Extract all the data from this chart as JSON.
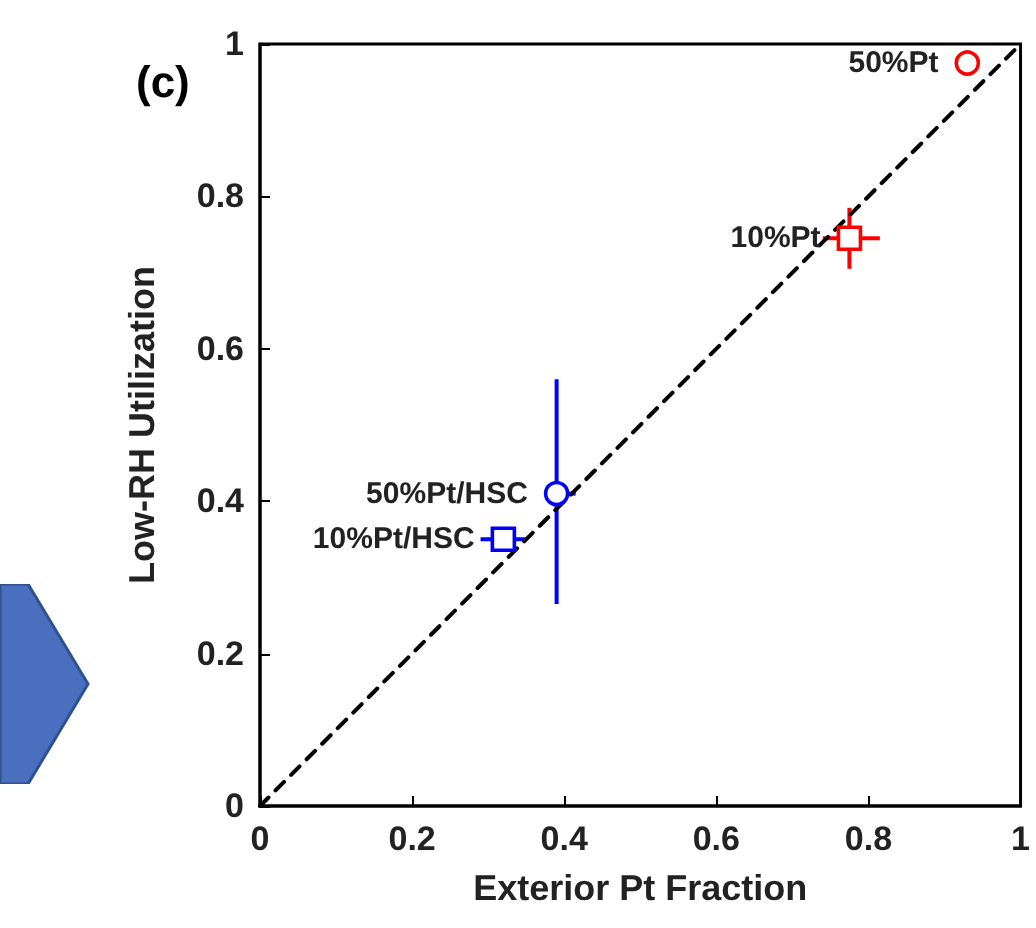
{
  "chart_data": {
    "type": "scatter",
    "xlabel": "Exterior Pt Fraction",
    "ylabel": "Low-RH Utilization",
    "annotations": [
      "(c)"
    ],
    "xlim": [
      0,
      1
    ],
    "ylim": [
      0,
      1
    ],
    "xticks": [
      0,
      0.2,
      0.4,
      0.6,
      0.8,
      1
    ],
    "yticks": [
      0,
      0.2,
      0.4,
      0.6,
      0.8,
      1
    ],
    "grid": false,
    "legend": false,
    "series": [
      {
        "type": "line",
        "color": "#000000",
        "x": [
          0,
          1
        ],
        "values": [
          0,
          1
        ],
        "line_style": "dashed",
        "marker": "none"
      },
      {
        "name": "50%Pt",
        "color": "#ff0000",
        "x": [
          0.93
        ],
        "values": [
          0.975
        ],
        "marker": "circle"
      },
      {
        "name": "10%Pt",
        "color": "#ff0000",
        "x": [
          0.775
        ],
        "values": [
          0.745
        ],
        "marker": "square",
        "errors": [
          [
            0.705,
            0.785
          ]
        ],
        "xerrors": [
          [
            0.74,
            0.815
          ]
        ]
      },
      {
        "name": "50%Pt/HSC",
        "color": "#0000ff",
        "x": [
          0.39
        ],
        "values": [
          0.41
        ],
        "marker": "circle",
        "errors": [
          [
            0.265,
            0.56
          ]
        ],
        "xerrors": [
          [
            0.375,
            0.415
          ]
        ]
      },
      {
        "name": "10%Pt/HSC",
        "color": "#0000ff",
        "x": [
          0.32
        ],
        "values": [
          0.35
        ],
        "marker": "square",
        "xerrors": [
          [
            0.29,
            0.35
          ]
        ]
      }
    ]
  }
}
